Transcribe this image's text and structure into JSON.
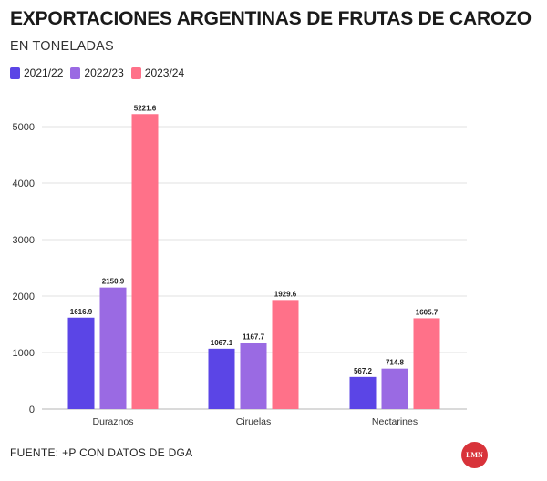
{
  "header": {
    "title": "EXPORTACIONES ARGENTINAS DE FRUTAS DE CAROZO",
    "subtitle": "EN TONELADAS"
  },
  "footer": {
    "source": "FUENTE: +P CON DATOS DE DGA",
    "logo_text": "LMN"
  },
  "colors": {
    "series": [
      "#5b45e6",
      "#9a6ae3",
      "#ff7189"
    ],
    "grid": "#e0e0e0",
    "logo": "#d8333a"
  },
  "chart_data": {
    "type": "bar",
    "title": "EXPORTACIONES ARGENTINAS DE FRUTAS DE CAROZO",
    "subtitle": "EN TONELADAS",
    "categories": [
      "Duraznos",
      "Ciruelas",
      "Nectarines"
    ],
    "series": [
      {
        "name": "2021/22",
        "values": [
          1616.9,
          1067.1,
          567.2
        ]
      },
      {
        "name": "2022/23",
        "values": [
          2150.9,
          1167.7,
          714.8
        ]
      },
      {
        "name": "2023/24",
        "values": [
          5221.6,
          1929.6,
          1605.7
        ]
      }
    ],
    "ylim": [
      0,
      5400
    ],
    "yticks": [
      0,
      1000,
      2000,
      3000,
      4000,
      5000
    ],
    "grid": true,
    "legend": "top-left"
  }
}
